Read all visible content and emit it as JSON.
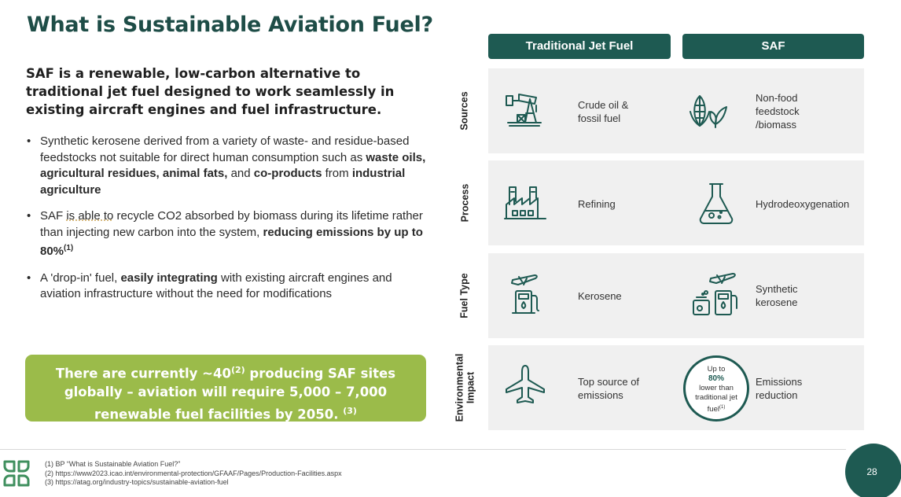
{
  "title": "What is Sustainable Aviation Fuel?",
  "lead": "SAF is a renewable, low-carbon alternative to traditional jet fuel designed to work seamlessly in existing aircraft engines and fuel infrastructure.",
  "bullets": {
    "b1": {
      "t1": "Synthetic kerosene derived from a variety of waste- and residue-based feedstocks not suitable for direct human consumption such as ",
      "b1": "waste oils, agricultural residues, animal fats,",
      "t2": " and ",
      "b2": "co-products",
      "t3": " from ",
      "b3": "industrial agriculture"
    },
    "b2": {
      "t1": "SAF ",
      "dotted": "is able to",
      "t2": " recycle CO2 absorbed by biomass during its lifetime rather than injecting new carbon into the system, ",
      "b1": "reducing emissions by up to 80%",
      "sup": "(1)"
    },
    "b3": {
      "t1": "A 'drop-in' fuel, ",
      "b1": "easily integrating",
      "t2": " with aircraft engines and aviation infrastructure without the need for modifications",
      "t2_full": " with existing aircraft engines and aviation infrastructure without the need for modifications"
    }
  },
  "callout": {
    "t1": "There are currently ~40",
    "sup1": "(2)",
    "t2": " producing SAF sites globally – aviation will require 5,000 – 7,000 renewable fuel facilities by 2050. ",
    "sup2": "(3)"
  },
  "table": {
    "headers": {
      "traditional": "Traditional Jet Fuel",
      "saf": "SAF"
    },
    "rows": [
      {
        "label": "Sources",
        "traditional": "Crude oil & fossil fuel",
        "saf": "Non-food feedstock /biomass",
        "trad_icon": "oil-pump-icon",
        "saf_icon": "corn-leaf-icon"
      },
      {
        "label": "Process",
        "traditional": "Refining",
        "saf": "Hydrodeoxygenation",
        "trad_icon": "factory-icon",
        "saf_icon": "flask-icon"
      },
      {
        "label": "Fuel Type",
        "traditional": "Kerosene",
        "saf": "Synthetic kerosene",
        "trad_icon": "fuel-pump-plane-icon",
        "saf_icon": "synthetic-fuel-icon"
      },
      {
        "label": "Environmental Impact",
        "traditional": "Top source of emissions",
        "saf": "Emissions reduction",
        "trad_icon": "airplane-icon"
      }
    ],
    "badge": {
      "l1": "Up to",
      "pct": "80%",
      "l2": "lower than",
      "l3": "traditional jet",
      "l4": "fuel",
      "sup": "(1)"
    }
  },
  "references": [
    "(1) BP “What is Sustainable Aviation Fuel?”",
    "(2) https://www2023.icao.int/environmental-protection/GFAAF/Pages/Production-Facilities.aspx",
    "(3) https://atag.org/industry-topics/sustainable-aviation-fuel"
  ],
  "page_number": "28",
  "colors": {
    "primary": "#1e5a52",
    "callout": "#9bbb4a",
    "row_bg": "#f0f0f0"
  }
}
